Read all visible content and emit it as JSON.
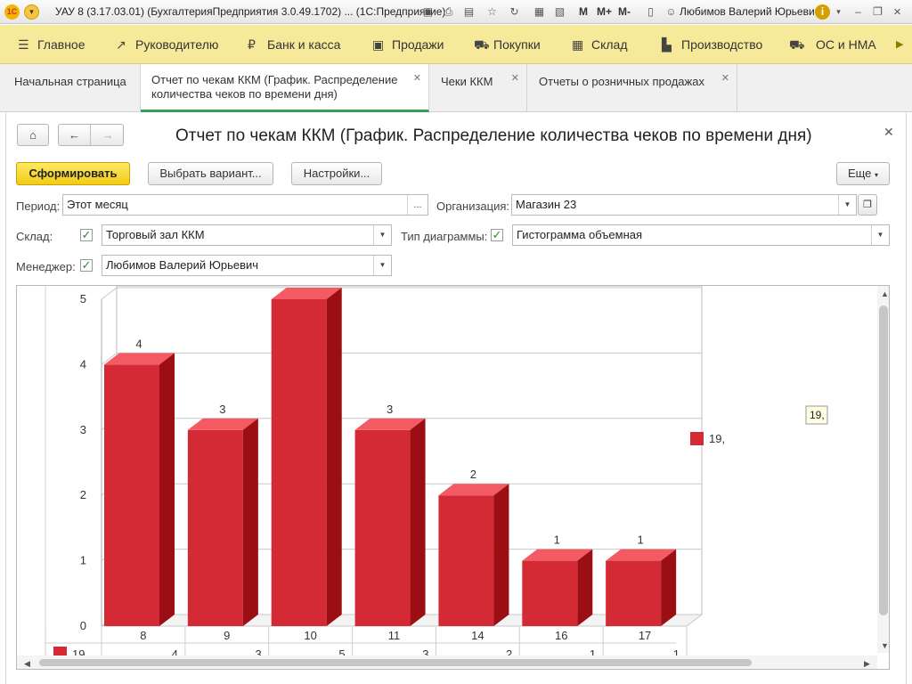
{
  "window": {
    "title": "УАУ 8 (3.17.03.01) (БухгалтерияПредприятия 3.0.49.1702) ...  (1С:Предприятие)",
    "user": "Любимов Валерий Юрьевич",
    "m_buttons": [
      "M",
      "M+",
      "M-"
    ],
    "logo_text": "1С"
  },
  "menu": [
    {
      "label": "Главное",
      "icon": "menu-lines-icon"
    },
    {
      "label": "Руководителю",
      "icon": "trend-icon"
    },
    {
      "label": "Банк и касса",
      "icon": "ruble-icon"
    },
    {
      "label": "Продажи",
      "icon": "bag-icon"
    },
    {
      "label": "Покупки",
      "icon": "cart-icon"
    },
    {
      "label": "Склад",
      "icon": "grid-icon"
    },
    {
      "label": "Производство",
      "icon": "factory-icon"
    },
    {
      "label": "ОС и НМА",
      "icon": "truck-icon"
    }
  ],
  "tabs": [
    {
      "label": "Начальная страница",
      "closable": false
    },
    {
      "label": "Отчет по чекам ККМ (График. Распределение количества чеков по времени дня)",
      "closable": true
    },
    {
      "label": "Чеки ККМ",
      "closable": true
    },
    {
      "label": "Отчеты о розничных продажах",
      "closable": true
    }
  ],
  "report": {
    "title": "Отчет по чекам ККМ (График. Распределение количества чеков по времени дня)",
    "generate_button": "Сформировать",
    "variant_button": "Выбрать вариант...",
    "settings_button": "Настройки...",
    "more_button": "Еще",
    "period_label": "Период:",
    "period_value": "Этот месяц",
    "ellipsis": "...",
    "org_label": "Организация:",
    "org_value": "Магазин 23",
    "warehouse_label": "Склад:",
    "warehouse_value": "Торговый зал ККМ",
    "chart_type_label": "Тип диаграммы:",
    "chart_type_value": "Гистограмма объемная",
    "manager_label": "Менеджер:",
    "manager_value": "Любимов Валерий Юрьевич"
  },
  "colors": {
    "accent_yellow": "#f3cb14",
    "menu_bg": "#f7e99a",
    "bar_front": "#d42a35",
    "bar_top": "#f35a64",
    "bar_side": "#9a0e14",
    "active_tab_underline": "#3aa050"
  },
  "chart_data": {
    "type": "bar",
    "categories": [
      "8",
      "9",
      "10",
      "11",
      "14",
      "16",
      "17"
    ],
    "series": [
      {
        "name": "19,",
        "values": [
          4,
          3,
          5,
          3,
          2,
          1,
          1
        ]
      }
    ],
    "data_labels": [
      "4",
      "3",
      "",
      "3",
      "2",
      "1",
      "1"
    ],
    "ylim": [
      0,
      5
    ],
    "yticks": [
      "0",
      "1",
      "2",
      "3",
      "4",
      "5"
    ],
    "legend": "right",
    "legend_label": "19,",
    "tooltip": "19,",
    "grid": true,
    "table_values": [
      "4",
      "3",
      "5",
      "3",
      "2",
      "1",
      "1"
    ]
  }
}
